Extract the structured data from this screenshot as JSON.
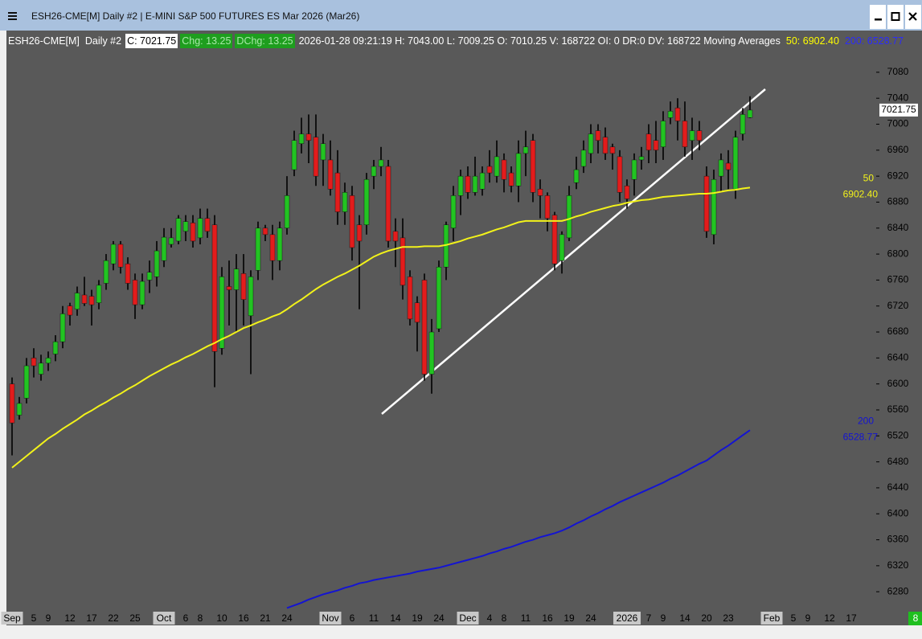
{
  "window": {
    "title": "ESH26-CME[M]  Daily #2 | E-MINI S&P 500 FUTURES ES Mar 2026 (Mar26)"
  },
  "chart_data": {
    "type": "candlestick",
    "header": {
      "symbol": "ESH26-CME[M]",
      "period": "Daily #2",
      "close": "C: 7021.75",
      "change": "Chg: 13.25",
      "daily_change": "DChg: 13.25",
      "info": "2026-01-28 09:21:19 H: 7043.00 L: 7009.25 O: 7010.25 V: 168722 OI: 0 DR:0 DV: 168722 Moving Averages",
      "ma50": "50: 6902.40",
      "ma200": "200: 6528.77"
    },
    "corner_badge": "8",
    "up_color": "#22c422",
    "down_color": "#e31c1c",
    "wick_color": "#000000",
    "background": "#595959",
    "ylim": [
      6253,
      7117
    ],
    "yticks": [
      6280,
      6320,
      6360,
      6400,
      6440,
      6480,
      6520,
      6560,
      6600,
      6640,
      6680,
      6720,
      6760,
      6800,
      6840,
      6880,
      6920,
      6960,
      7000,
      7040,
      7080
    ],
    "categories": [
      "Sep",
      null,
      null,
      "5",
      null,
      "9",
      null,
      null,
      "12",
      null,
      null,
      "17",
      null,
      null,
      "22",
      null,
      null,
      "25",
      null,
      null,
      null,
      "Oct",
      null,
      null,
      "6",
      null,
      "8",
      null,
      null,
      "10",
      null,
      null,
      "16",
      null,
      null,
      "21",
      null,
      null,
      "24",
      null,
      null,
      null,
      null,
      null,
      "Nov",
      null,
      null,
      "6",
      null,
      null,
      "11",
      null,
      null,
      "14",
      null,
      null,
      "19",
      null,
      null,
      "24",
      null,
      null,
      null,
      "Dec",
      null,
      null,
      "4",
      null,
      "8",
      null,
      null,
      "11",
      null,
      null,
      "16",
      null,
      null,
      "19",
      null,
      null,
      "24",
      null,
      null,
      null,
      null,
      "2026",
      null,
      null,
      "7",
      null,
      "9",
      null,
      null,
      "14",
      null,
      null,
      "20",
      null,
      null,
      "23",
      null,
      null,
      null,
      null,
      null,
      "Feb",
      null,
      null,
      "5",
      null,
      "9",
      null,
      null,
      "12",
      null,
      null,
      "17"
    ],
    "open": [
      6600,
      6552,
      6578,
      6640,
      6615,
      6632,
      6646,
      6665,
      6720,
      6715,
      6737,
      6735,
      6725,
      6755,
      6785,
      6815,
      6785,
      6760,
      6722,
      6760,
      6765,
      6790,
      6815,
      6820,
      6835,
      6848,
      6825,
      6855,
      6845,
      6655,
      6750,
      6745,
      6770,
      6705,
      6775,
      6840,
      6830,
      6790,
      6840,
      6930,
      6970,
      6985,
      6980,
      6945,
      6945,
      6925,
      6865,
      6890,
      6845,
      6845,
      6920,
      6935,
      6935,
      6835,
      6825,
      6765,
      6725,
      6760,
      6615,
      6685,
      6780,
      6840,
      6890,
      6920,
      6895,
      6900,
      6935,
      6920,
      6945,
      6925,
      6905,
      6955,
      6975,
      6900,
      6890,
      6860,
      6790,
      6825,
      6910,
      6935,
      6955,
      6990,
      6980,
      6965,
      6950,
      6905,
      6915,
      6945,
      6985,
      6975,
      6965,
      7010,
      7025,
      7005,
      6975,
      6990,
      6920,
      6830,
      6920,
      6940,
      6900,
      6985,
      7010.25,
      null,
      null,
      null,
      null,
      null,
      null,
      null,
      null,
      null,
      null,
      null,
      null,
      null,
      null
    ],
    "high": [
      6610,
      6580,
      6640,
      6655,
      6645,
      6650,
      6675,
      6720,
      6725,
      6750,
      6765,
      6745,
      6760,
      6800,
      6820,
      6820,
      6795,
      6770,
      6770,
      6790,
      6820,
      6840,
      6840,
      6860,
      6860,
      6860,
      6870,
      6870,
      6860,
      6780,
      6790,
      6800,
      6800,
      6775,
      6850,
      6845,
      6845,
      6850,
      6920,
      6990,
      7010,
      7015,
      7015,
      6985,
      6975,
      6960,
      6910,
      6905,
      6860,
      6925,
      6945,
      6965,
      6945,
      6855,
      6855,
      6775,
      6735,
      6770,
      6700,
      6790,
      6850,
      6905,
      6930,
      6935,
      6950,
      6935,
      6960,
      6975,
      6955,
      6935,
      6975,
      6990,
      6985,
      6915,
      6895,
      6865,
      6835,
      6905,
      6950,
      6975,
      7000,
      7000,
      6995,
      6970,
      6960,
      6915,
      6955,
      6965,
      7000,
      7005,
      7020,
      7035,
      7040,
      7035,
      7010,
      7005,
      6935,
      6930,
      6955,
      6960,
      6990,
      7025,
      7043,
      null,
      null,
      null,
      null,
      null,
      null,
      null,
      null,
      null,
      null,
      null,
      null,
      null,
      null
    ],
    "low": [
      6490,
      6545,
      6570,
      6610,
      6605,
      6620,
      6635,
      6655,
      6690,
      6705,
      6720,
      6690,
      6715,
      6745,
      6775,
      6770,
      6745,
      6700,
      6715,
      6740,
      6750,
      6780,
      6810,
      6815,
      6820,
      6810,
      6815,
      6825,
      6595,
      6645,
      6690,
      6680,
      6690,
      6615,
      6760,
      6820,
      6760,
      6775,
      6830,
      6920,
      6955,
      6940,
      6905,
      6905,
      6890,
      6845,
      6845,
      6790,
      6715,
      6830,
      6900,
      6920,
      6810,
      6780,
      6730,
      6690,
      6650,
      6605,
      6585,
      6680,
      6760,
      6820,
      6860,
      6885,
      6890,
      6890,
      6910,
      6910,
      6895,
      6895,
      6880,
      6920,
      6880,
      6855,
      6835,
      6775,
      6770,
      6820,
      6900,
      6925,
      6940,
      6955,
      6945,
      6930,
      6880,
      6870,
      6890,
      6930,
      6940,
      6940,
      6945,
      7000,
      6975,
      6950,
      6945,
      6960,
      6825,
      6815,
      6895,
      6900,
      6885,
      6975,
      7009.25,
      null,
      null,
      null,
      null,
      null,
      null,
      null,
      null,
      null,
      null,
      null,
      null,
      null,
      null
    ],
    "close": [
      6540,
      6570,
      6628,
      6628,
      6632,
      6640,
      6665,
      6708,
      6706,
      6740,
      6724,
      6722,
      6752,
      6790,
      6815,
      6780,
      6755,
      6722,
      6758,
      6772,
      6805,
      6826,
      6825,
      6855,
      6850,
      6820,
      6855,
      6835,
      6650,
      6765,
      6745,
      6777,
      6730,
      6765,
      6840,
      6830,
      6790,
      6840,
      6890,
      6975,
      6985,
      6975,
      6920,
      6970,
      6900,
      6865,
      6895,
      6810,
      6820,
      6915,
      6935,
      6945,
      6820,
      6820,
      6752,
      6700,
      6695,
      6615,
      6680,
      6780,
      6845,
      6890,
      6920,
      6895,
      6920,
      6925,
      6925,
      6950,
      6915,
      6905,
      6955,
      6965,
      6895,
      6890,
      6855,
      6785,
      6830,
      6890,
      6930,
      6960,
      6985,
      6975,
      6955,
      6955,
      6895,
      6885,
      6945,
      6950,
      6960,
      6960,
      7005,
      7020,
      7005,
      6965,
      6990,
      6975,
      6835,
      6915,
      6945,
      6930,
      6980,
      7015,
      7021.75,
      null,
      null,
      null,
      null,
      null,
      null,
      null,
      null,
      null,
      null,
      null,
      null,
      null,
      null
    ],
    "series": [
      {
        "name": "50",
        "color": "#f2f21a",
        "last_value_label": "6902.40",
        "values": [
          6471,
          6480,
          6489,
          6498,
          6507,
          6516,
          6523,
          6531,
          6538,
          6545,
          6553,
          6559,
          6566,
          6572,
          6579,
          6585,
          6592,
          6598,
          6605,
          6612,
          6618,
          6624,
          6630,
          6635,
          6641,
          6646,
          6652,
          6658,
          6663,
          6669,
          6674,
          6680,
          6686,
          6690,
          6695,
          6699,
          6704,
          6708,
          6715,
          6723,
          6730,
          6738,
          6746,
          6753,
          6759,
          6765,
          6770,
          6776,
          6782,
          6789,
          6796,
          6801,
          6805,
          6808,
          6811,
          6811,
          6811,
          6812,
          6812,
          6812,
          6814,
          6817,
          6820,
          6824,
          6827,
          6830,
          6834,
          6838,
          6841,
          6845,
          6849,
          6851,
          6851,
          6851,
          6851,
          6851,
          6851,
          6854,
          6858,
          6861,
          6865,
          6868,
          6871,
          6874,
          6876,
          6879,
          6881,
          6883,
          6884,
          6886,
          6888,
          6889,
          6890,
          6891,
          6892,
          6893,
          6893,
          6894,
          6896,
          6898,
          6899,
          6901,
          6902.4,
          null,
          null,
          null,
          null,
          null,
          null,
          null,
          null,
          null,
          null,
          null,
          null,
          null,
          null
        ]
      },
      {
        "name": "200",
        "color": "#1414d2",
        "last_value_label": "6528.77",
        "values": [
          null,
          null,
          null,
          null,
          null,
          null,
          null,
          null,
          null,
          null,
          null,
          null,
          null,
          null,
          null,
          null,
          null,
          null,
          null,
          null,
          null,
          null,
          null,
          null,
          null,
          null,
          null,
          null,
          null,
          null,
          null,
          null,
          null,
          null,
          null,
          null,
          null,
          null,
          6255,
          6259,
          6263,
          6268,
          6272,
          6276,
          6279,
          6282,
          6286,
          6289,
          6293,
          6295,
          6298,
          6300,
          6302,
          6304,
          6306,
          6308,
          6311,
          6313,
          6315,
          6317,
          6320,
          6323,
          6326,
          6329,
          6332,
          6335,
          6339,
          6342,
          6346,
          6349,
          6353,
          6357,
          6360,
          6364,
          6367,
          6370,
          6374,
          6379,
          6385,
          6390,
          6396,
          6401,
          6407,
          6412,
          6418,
          6423,
          6428,
          6433,
          6438,
          6443,
          6448,
          6454,
          6459,
          6465,
          6471,
          6477,
          6482,
          6490,
          6498,
          6505,
          6513,
          6521,
          6528.77,
          null,
          null,
          null,
          null,
          null,
          null,
          null,
          null,
          null,
          null,
          null,
          null,
          null,
          null
        ]
      }
    ]
  }
}
